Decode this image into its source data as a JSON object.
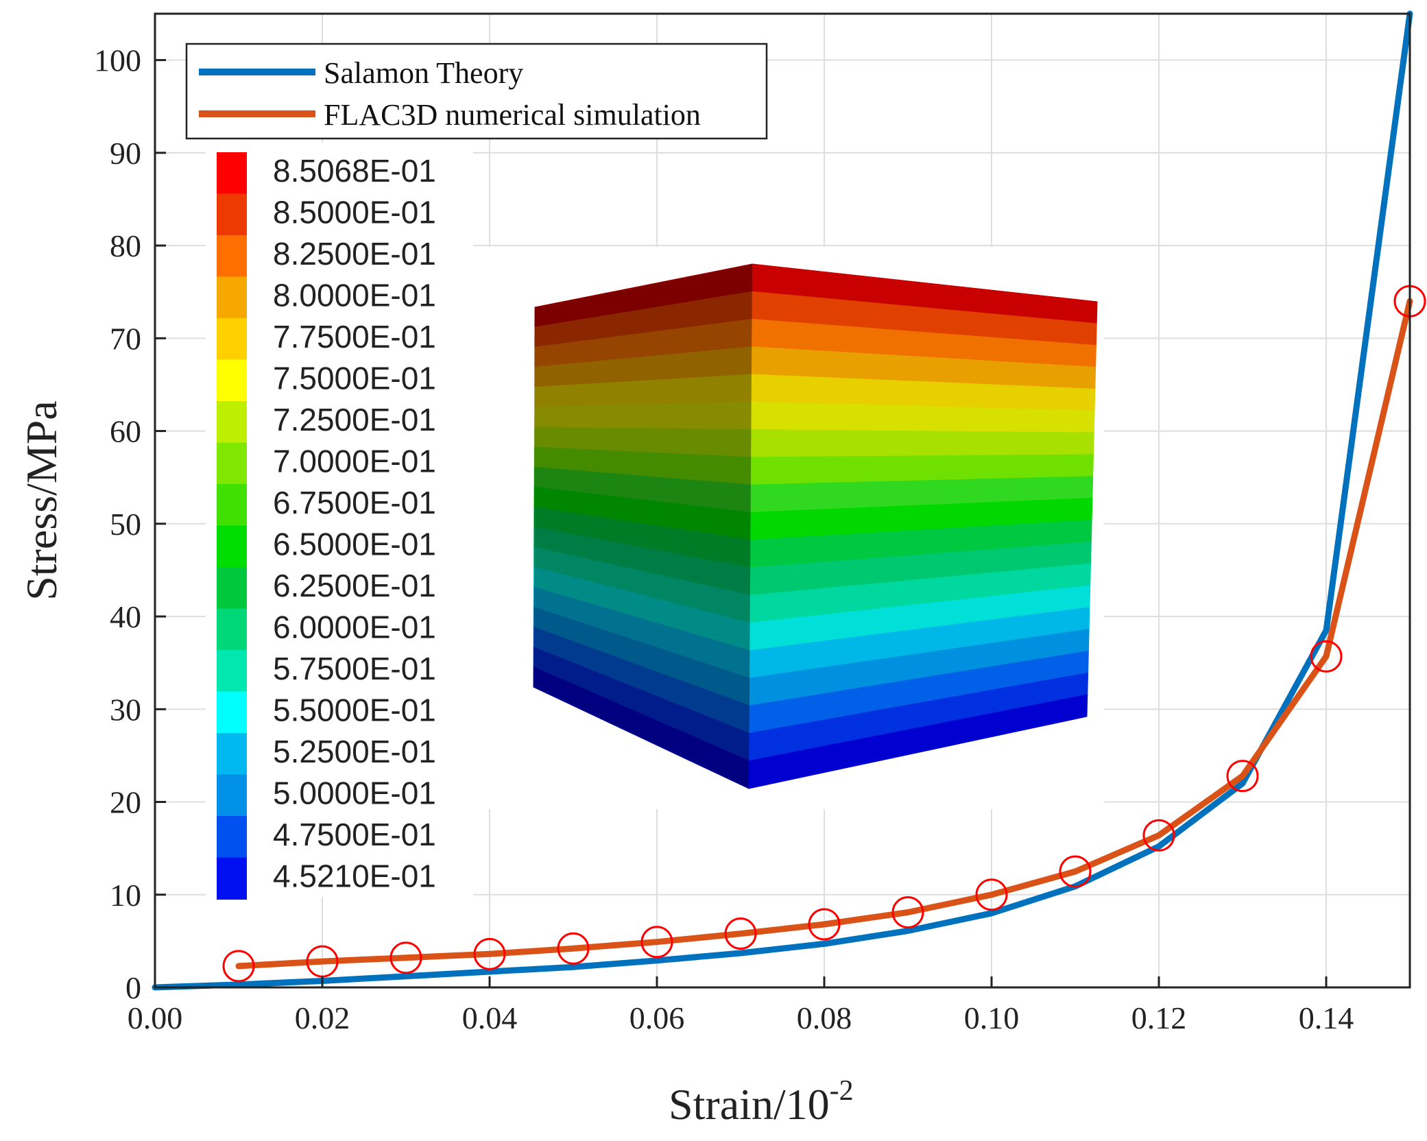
{
  "chart_data": {
    "type": "line",
    "title": "",
    "xlabel": "Strain/10",
    "xlabel_superscript": "-2",
    "ylabel": "Stress/MPa",
    "xlim": [
      0,
      0.15
    ],
    "ylim": [
      0,
      105
    ],
    "xticks": [
      0,
      0.02,
      0.04,
      0.06,
      0.08,
      0.1,
      0.12,
      0.14
    ],
    "xtick_labels": [
      "0.00",
      "0.02",
      "0.04",
      "0.06",
      "0.08",
      "0.10",
      "0.12",
      "0.14"
    ],
    "yticks": [
      0,
      10,
      20,
      30,
      40,
      50,
      60,
      70,
      80,
      90,
      100
    ],
    "ytick_labels": [
      "0",
      "10",
      "20",
      "30",
      "40",
      "50",
      "60",
      "70",
      "80",
      "90",
      "100"
    ],
    "grid": true,
    "legend_position": "top-left",
    "series": [
      {
        "name": "Salamon Theory",
        "color": "#0072BD",
        "markers": false,
        "x": [
          0.0,
          0.01,
          0.02,
          0.03,
          0.04,
          0.05,
          0.06,
          0.07,
          0.08,
          0.09,
          0.1,
          0.11,
          0.12,
          0.13,
          0.14,
          0.15
        ],
        "y": [
          0.0,
          0.3,
          0.7,
          1.2,
          1.7,
          2.2,
          2.9,
          3.7,
          4.7,
          6.1,
          8.0,
          10.9,
          15.2,
          22.0,
          38.5,
          105.0
        ]
      },
      {
        "name": "FLAC3D numerical simulation",
        "color": "#D95319",
        "markers": true,
        "marker_color": "#FF0000",
        "x": [
          0.01,
          0.02,
          0.03,
          0.04,
          0.05,
          0.06,
          0.07,
          0.08,
          0.09,
          0.1,
          0.11,
          0.12,
          0.13,
          0.14,
          0.15
        ],
        "y": [
          2.3,
          2.8,
          3.2,
          3.6,
          4.2,
          4.9,
          5.8,
          6.8,
          8.1,
          10.0,
          12.5,
          16.4,
          22.8,
          35.7,
          74.0
        ]
      }
    ]
  },
  "inset": {
    "colorbar_labels": [
      "8.5068E-01",
      "8.5000E-01",
      "8.2500E-01",
      "8.0000E-01",
      "7.7500E-01",
      "7.5000E-01",
      "7.2500E-01",
      "7.0000E-01",
      "6.7500E-01",
      "6.5000E-01",
      "6.2500E-01",
      "6.0000E-01",
      "5.7500E-01",
      "5.5000E-01",
      "5.2500E-01",
      "5.0000E-01",
      "4.7500E-01",
      "4.5210E-01"
    ],
    "colorbar_colors": [
      "#FF0000",
      "#EE3A00",
      "#FF6E00",
      "#F7A800",
      "#FFD000",
      "#FFFF00",
      "#BFEF00",
      "#80E800",
      "#40E000",
      "#00DC00",
      "#00C83C",
      "#00D878",
      "#00E8B0",
      "#00FFFF",
      "#00B8F0",
      "#0090E8",
      "#0050F0",
      "#0010F0"
    ],
    "cube_band_colors": [
      "#C80000",
      "#E04000",
      "#F07000",
      "#E8A000",
      "#E8D000",
      "#D8E000",
      "#A8E000",
      "#70E000",
      "#30D820",
      "#00D800",
      "#00C840",
      "#00C870",
      "#00D8A0",
      "#00E0D8",
      "#00B8E8",
      "#0090E0",
      "#0060E8",
      "#0030E0",
      "#0000D0"
    ]
  }
}
